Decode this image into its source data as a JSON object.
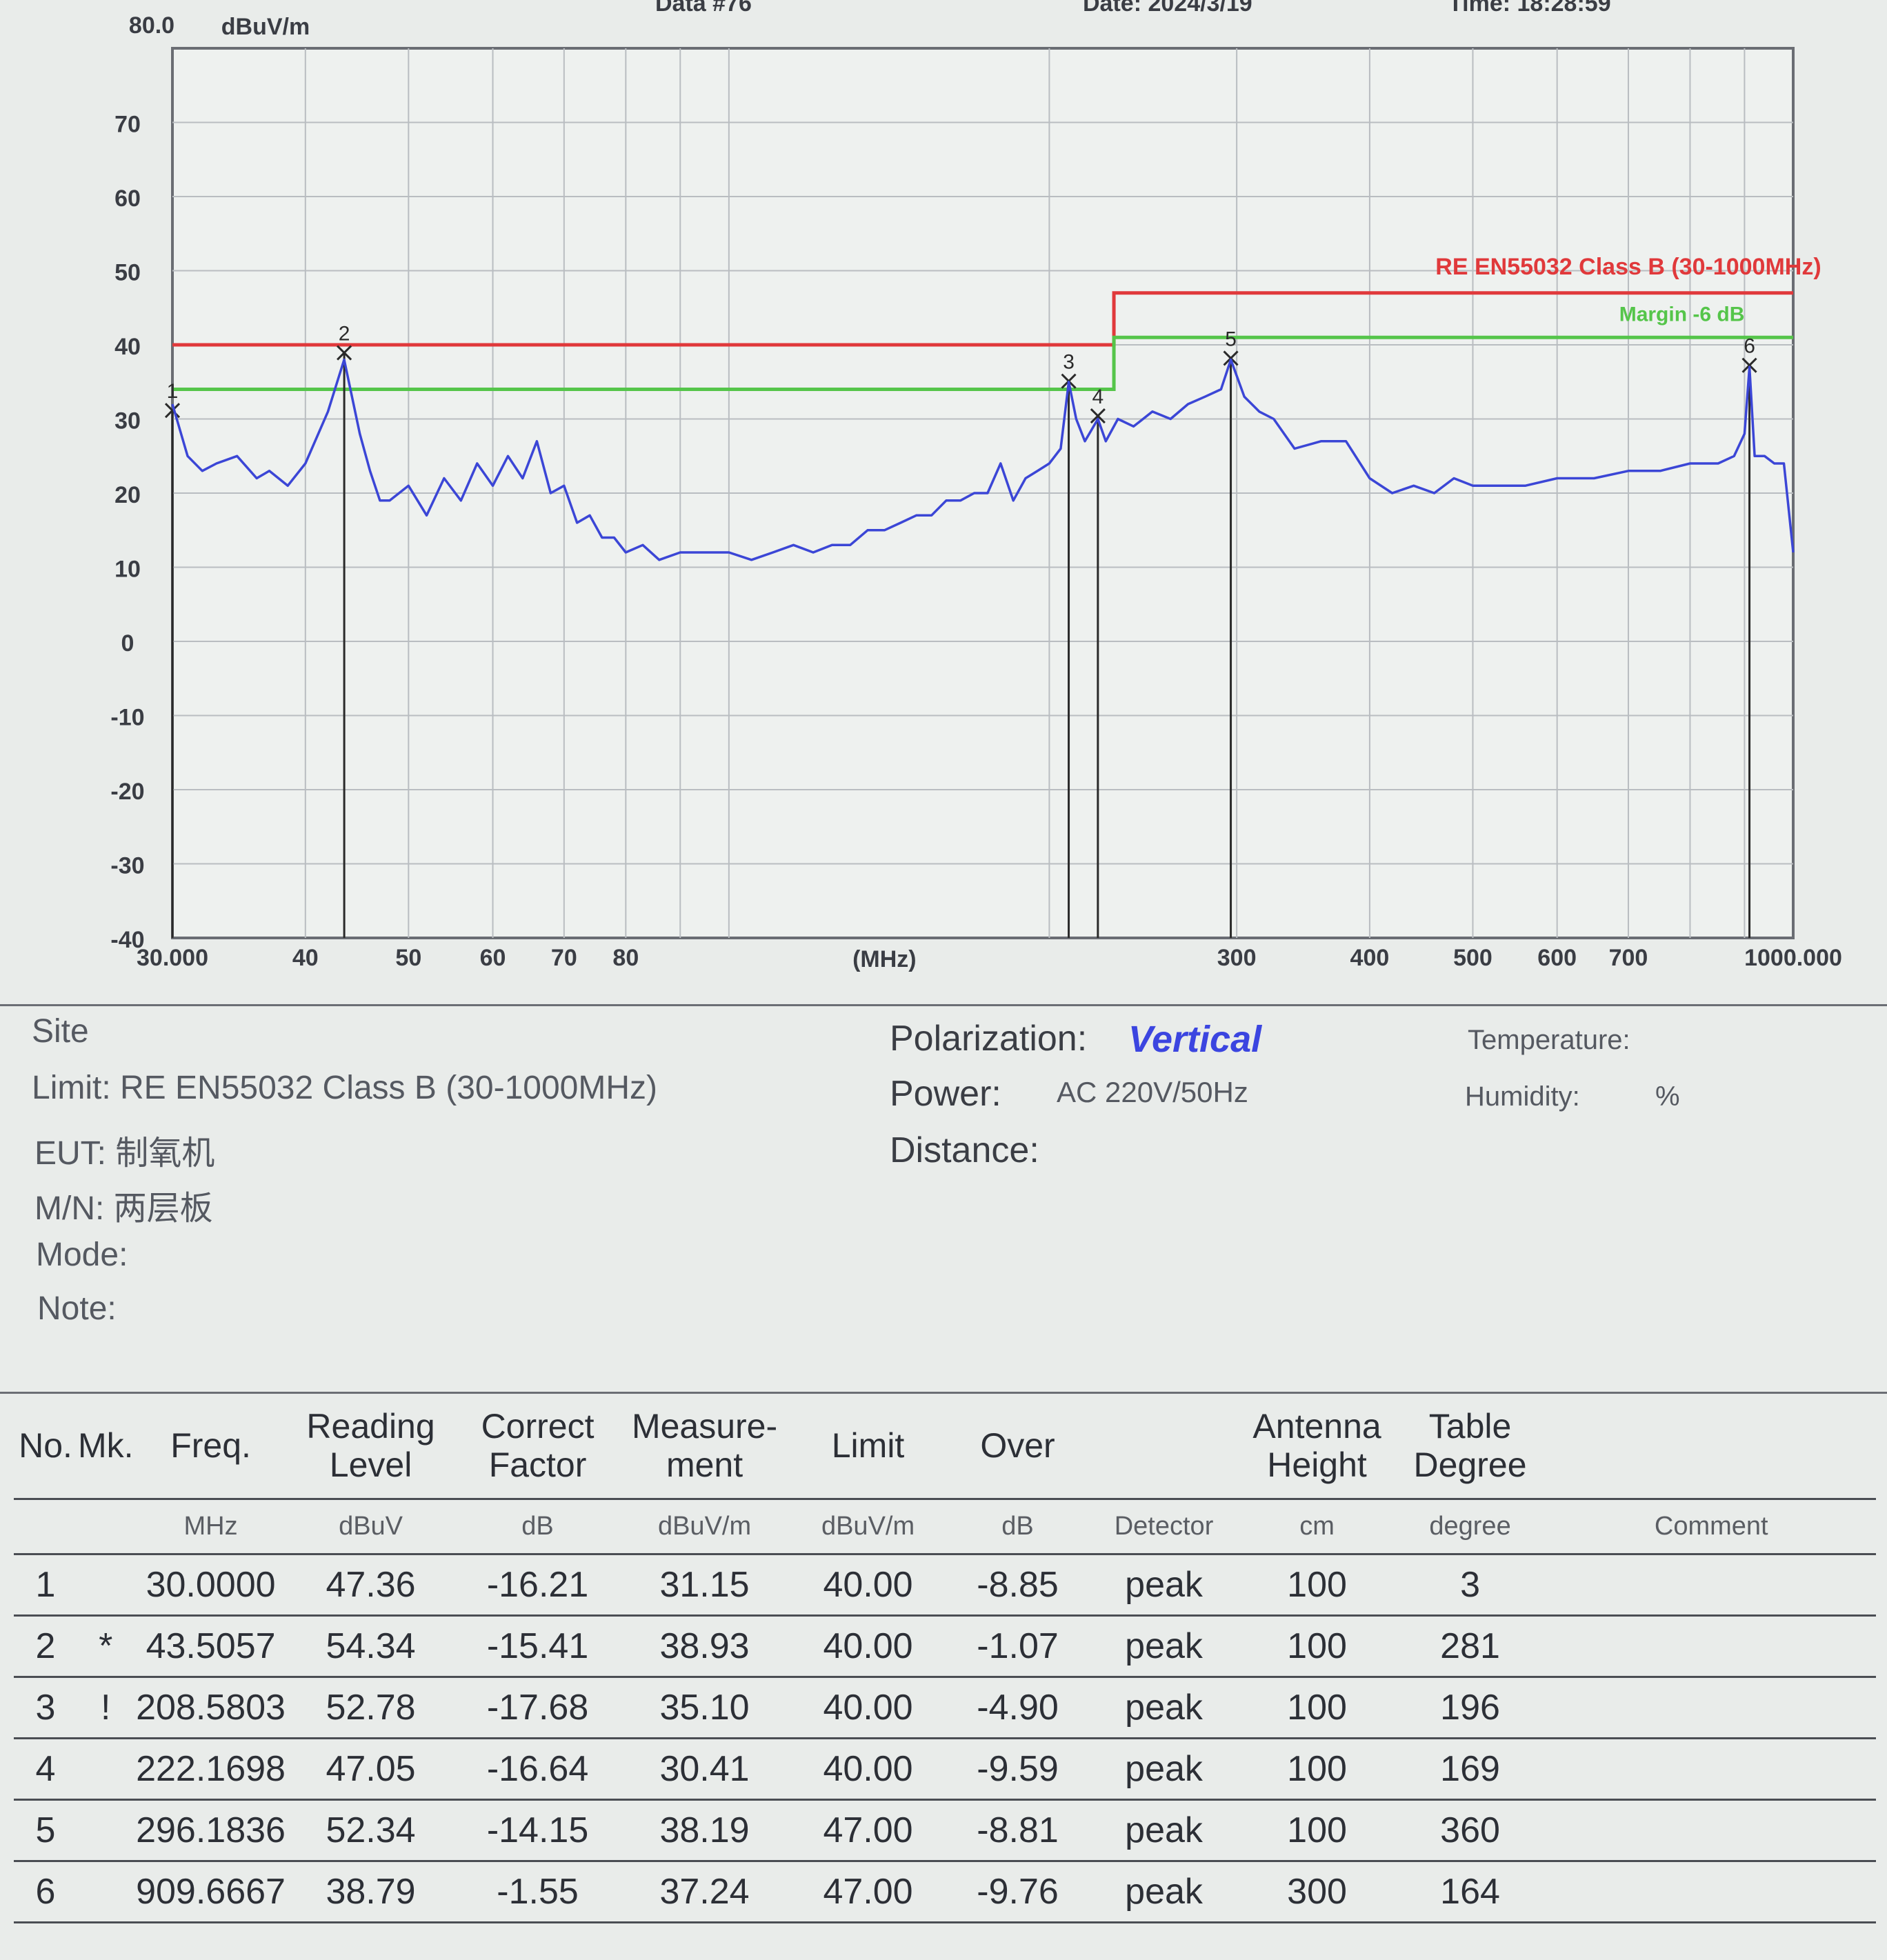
{
  "header": {
    "data_label": "Data #76",
    "date_label": "Date: 2024/3/19",
    "time_label": "Time: 18:28:59"
  },
  "chart_data": {
    "type": "line",
    "title": "",
    "ylabel_top": "80.0",
    "yunit": "dBuV/m",
    "xunit": "(MHz)",
    "xscale": "log",
    "xlim": [
      30,
      1000
    ],
    "ylim": [
      -40,
      80
    ],
    "yticks": [
      "70",
      "60",
      "50",
      "40",
      "30",
      "20",
      "10",
      "0",
      "-10",
      "-20",
      "-30",
      "-40"
    ],
    "xticks": [
      "30.000",
      "40",
      "50",
      "60",
      "70",
      "80",
      "300",
      "400",
      "500",
      "600",
      "700",
      "1000.000"
    ],
    "grid": true,
    "limit_line": {
      "name": "RE EN55032 Class B  (30-1000MHz)",
      "color": "#e0393b",
      "points": [
        [
          30,
          40
        ],
        [
          230,
          40
        ],
        [
          230,
          47
        ],
        [
          1000,
          47
        ]
      ]
    },
    "margin_line": {
      "name": "Margin -6 dB",
      "color": "#55c54a",
      "points": [
        [
          30,
          34
        ],
        [
          230,
          34
        ],
        [
          230,
          41
        ],
        [
          1000,
          41
        ]
      ]
    },
    "series": [
      {
        "color": "#3b46d6",
        "x": [
          30,
          31,
          32,
          33,
          34.5,
          36,
          37,
          38.5,
          40,
          42,
          43.5,
          45,
          46,
          47,
          48,
          50,
          52,
          54,
          56,
          58,
          60,
          62,
          64,
          66,
          68,
          70,
          72,
          74,
          76,
          78,
          80,
          83,
          86,
          90,
          95,
          100,
          105,
          110,
          115,
          120,
          125,
          130,
          135,
          140,
          145,
          150,
          155,
          160,
          165,
          170,
          175,
          180,
          185,
          190,
          195,
          200,
          205,
          208.6,
          212,
          216,
          222.2,
          226,
          232,
          240,
          250,
          260,
          270,
          280,
          290,
          296.2,
          305,
          315,
          325,
          340,
          360,
          380,
          400,
          420,
          440,
          460,
          480,
          500,
          530,
          560,
          600,
          650,
          700,
          750,
          800,
          850,
          880,
          900,
          909.7,
          920,
          940,
          960,
          980,
          1000
        ],
        "y": [
          32,
          25,
          23,
          24,
          25,
          22,
          23,
          21,
          24,
          31,
          38,
          28,
          23,
          19,
          19,
          21,
          17,
          22,
          19,
          24,
          21,
          25,
          22,
          27,
          20,
          21,
          16,
          17,
          14,
          14,
          12,
          13,
          11,
          12,
          12,
          12,
          11,
          12,
          13,
          12,
          13,
          13,
          15,
          15,
          16,
          17,
          17,
          19,
          19,
          20,
          20,
          24,
          19,
          22,
          23,
          24,
          26,
          35,
          30,
          27,
          30,
          27,
          30,
          29,
          31,
          30,
          32,
          33,
          34,
          38,
          33,
          31,
          30,
          26,
          27,
          27,
          22,
          20,
          21,
          20,
          22,
          21,
          21,
          21,
          22,
          22,
          23,
          23,
          24,
          24,
          25,
          28,
          37,
          25,
          25,
          24,
          24,
          12
        ]
      }
    ],
    "markers": [
      {
        "label": "1",
        "freq": 30.0,
        "level": 31.15
      },
      {
        "label": "2",
        "freq": 43.5057,
        "level": 38.93
      },
      {
        "label": "3",
        "freq": 208.5803,
        "level": 35.1
      },
      {
        "label": "4",
        "freq": 222.1698,
        "level": 30.41
      },
      {
        "label": "5",
        "freq": 296.1836,
        "level": 38.19
      },
      {
        "label": "6",
        "freq": 909.6667,
        "level": 37.24
      }
    ]
  },
  "info": {
    "site": "Site",
    "limit": "Limit: RE EN55032 Class B  (30-1000MHz)",
    "eut": "EUT:  制氧机",
    "mn": "M/N:  两层板",
    "mode": "Mode:",
    "note": "Note:",
    "polarization_label": "Polarization:",
    "polarization_value": "Vertical",
    "power_label": "Power:",
    "power_value": "AC 220V/50Hz",
    "distance_label": "Distance:",
    "temperature_label": "Temperature:",
    "humidity_label": "Humidity:",
    "humidity_unit": "%"
  },
  "table": {
    "headers": {
      "no": "No.",
      "mk": "Mk.",
      "freq": "Freq.",
      "reading_1": "Reading",
      "reading_2": "Level",
      "correct_1": "Correct",
      "correct_2": "Factor",
      "measure_1": "Measure-",
      "measure_2": "ment",
      "limit": "Limit",
      "over": "Over",
      "antenna_1": "Antenna",
      "antenna_2": "Height",
      "table_1": "Table",
      "table_2": "Degree"
    },
    "units": {
      "freq": "MHz",
      "reading": "dBuV",
      "correct": "dB",
      "measure": "dBuV/m",
      "limit": "dBuV/m",
      "over": "dB",
      "detector": "Detector",
      "antenna": "cm",
      "table": "degree",
      "comment": "Comment"
    },
    "rows": [
      {
        "no": "1",
        "mk": "",
        "freq": "30.0000",
        "reading": "47.36",
        "correct": "-16.21",
        "measure": "31.15",
        "limit": "40.00",
        "over": "-8.85",
        "detector": "peak",
        "antenna": "100",
        "degree": "3",
        "comment": ""
      },
      {
        "no": "2",
        "mk": "*",
        "freq": "43.5057",
        "reading": "54.34",
        "correct": "-15.41",
        "measure": "38.93",
        "limit": "40.00",
        "over": "-1.07",
        "detector": "peak",
        "antenna": "100",
        "degree": "281",
        "comment": ""
      },
      {
        "no": "3",
        "mk": "!",
        "freq": "208.5803",
        "reading": "52.78",
        "correct": "-17.68",
        "measure": "35.10",
        "limit": "40.00",
        "over": "-4.90",
        "detector": "peak",
        "antenna": "100",
        "degree": "196",
        "comment": ""
      },
      {
        "no": "4",
        "mk": "",
        "freq": "222.1698",
        "reading": "47.05",
        "correct": "-16.64",
        "measure": "30.41",
        "limit": "40.00",
        "over": "-9.59",
        "detector": "peak",
        "antenna": "100",
        "degree": "169",
        "comment": ""
      },
      {
        "no": "5",
        "mk": "",
        "freq": "296.1836",
        "reading": "52.34",
        "correct": "-14.15",
        "measure": "38.19",
        "limit": "47.00",
        "over": "-8.81",
        "detector": "peak",
        "antenna": "100",
        "degree": "360",
        "comment": ""
      },
      {
        "no": "6",
        "mk": "",
        "freq": "909.6667",
        "reading": "38.79",
        "correct": "-1.55",
        "measure": "37.24",
        "limit": "47.00",
        "over": "-9.76",
        "detector": "peak",
        "antenna": "300",
        "degree": "164",
        "comment": ""
      }
    ]
  }
}
